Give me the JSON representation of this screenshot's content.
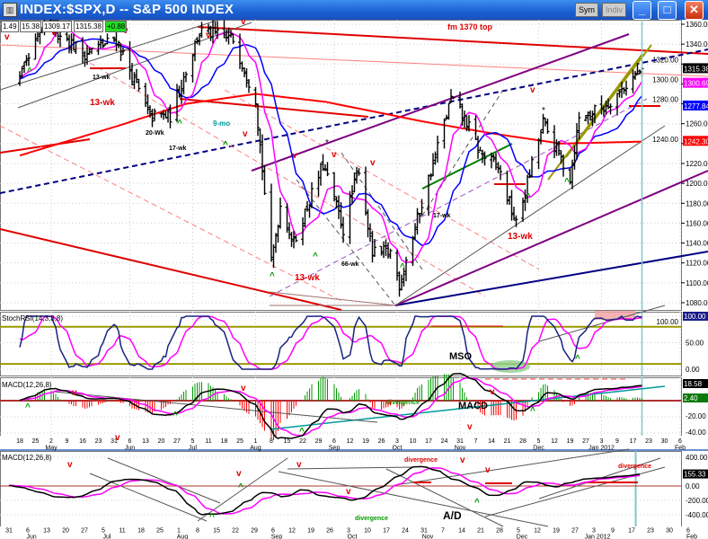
{
  "window": {
    "title": "INDEX:$SPX,D -- S&P 500 INDEX",
    "icon": "chart-icon",
    "buttons": [
      "Sym",
      "Indiv"
    ],
    "controls": [
      "minimize",
      "maximize",
      "close"
    ]
  },
  "quote": {
    "open": "1.49",
    "high": "15.38",
    "low": "1309.17",
    "close": "1315.38",
    "change": "+0.88"
  },
  "colors": {
    "price": "#000000",
    "ma_short": "#ff00ff",
    "ma_mid": "#0000ff",
    "ma_long": "#ff0000",
    "stoch": "#1a237e",
    "signal": "#ff00ff",
    "hist_up": "#009900",
    "hist_down": "#ff0000",
    "level": "#999900"
  },
  "chart_data": [
    {
      "type": "ohlc",
      "panel": "price",
      "title": "INDEX:$SPX,D -- S&P 500 INDEX",
      "ylim": [
        1075,
        1365
      ],
      "yticks": [
        "1360.00",
        "1340.00",
        "1320.00",
        "1300.00",
        "1280.00",
        "1260.00",
        "1240.00",
        "1220.00",
        "1200.00",
        "1180.00",
        "1160.00",
        "1140.00",
        "1120.00",
        "1100.00",
        "1080.00"
      ],
      "close_path": [
        [
          "2011-04-18",
          1305
        ],
        [
          "2011-04-29",
          1360
        ],
        [
          "2011-05-02",
          1361
        ],
        [
          "2011-05-16",
          1330
        ],
        [
          "2011-05-31",
          1345
        ],
        [
          "2011-06-15",
          1267
        ],
        [
          "2011-06-24",
          1268
        ],
        [
          "2011-07-07",
          1353
        ],
        [
          "2011-07-22",
          1345
        ],
        [
          "2011-08-01",
          1286
        ],
        [
          "2011-08-08",
          1119
        ],
        [
          "2011-08-12",
          1178
        ],
        [
          "2011-08-18",
          1140
        ],
        [
          "2011-08-31",
          1219
        ],
        [
          "2011-09-09",
          1154
        ],
        [
          "2011-09-16",
          1216
        ],
        [
          "2011-09-22",
          1129
        ],
        [
          "2011-09-30",
          1131
        ],
        [
          "2011-10-04",
          1099
        ],
        [
          "2011-10-27",
          1285
        ],
        [
          "2011-11-03",
          1261
        ],
        [
          "2011-11-09",
          1230
        ],
        [
          "2011-11-17",
          1216
        ],
        [
          "2011-11-25",
          1158
        ],
        [
          "2011-12-07",
          1261
        ],
        [
          "2011-12-19",
          1206
        ],
        [
          "2011-12-23",
          1265
        ],
        [
          "2012-01-03",
          1277
        ],
        [
          "2012-01-20",
          1315
        ]
      ],
      "ma_long_path": [
        [
          "2011-04-18",
          1228
        ],
        [
          "2011-06-01",
          1258
        ],
        [
          "2011-07-01",
          1280
        ],
        [
          "2011-08-01",
          1290
        ],
        [
          "2011-09-01",
          1282
        ],
        [
          "2011-10-15",
          1262
        ],
        [
          "2011-11-15",
          1250
        ],
        [
          "2011-12-15",
          1240
        ],
        [
          "2012-01-20",
          1242
        ]
      ],
      "value_labels": {
        "close": "1315.38",
        "ma_short": "1300.69",
        "ma_mid": "1277.84",
        "ma_long": "1242.30"
      }
    },
    {
      "type": "line",
      "panel": "stochrsi",
      "label": "StochRSI(14,3,3,8)",
      "ylim": [
        0,
        100
      ],
      "yticks": [
        "100.00",
        "50.00",
        "0.00"
      ],
      "levels": [
        80,
        10
      ],
      "value_label": "100.00"
    },
    {
      "type": "macd",
      "panel": "macd",
      "label": "MACD(12,26,8)",
      "ylim": [
        -42,
        25
      ],
      "yticks": [
        "-20.00",
        "-40.00"
      ],
      "value_labels": {
        "macd": "18.58",
        "histogram": "2.40"
      }
    },
    {
      "type": "line",
      "panel": "ad",
      "label": "MACD(12,26,8)",
      "ylim": [
        -450,
        450
      ],
      "yticks": [
        "400.00",
        "0.00",
        "-200.00",
        "-400.00"
      ],
      "value_label": "155.33"
    }
  ],
  "axis_top": [
    {
      "d": "18"
    },
    {
      "d": "25"
    },
    {
      "d": "2",
      "m": "May"
    },
    {
      "d": "9"
    },
    {
      "d": "16"
    },
    {
      "d": "23"
    },
    {
      "d": "31"
    },
    {
      "d": "6",
      "m": "Jun"
    },
    {
      "d": "13"
    },
    {
      "d": "20"
    },
    {
      "d": "27"
    },
    {
      "d": "5",
      "m": "Jul"
    },
    {
      "d": "11"
    },
    {
      "d": "18"
    },
    {
      "d": "25"
    },
    {
      "d": "1",
      "m": "Aug"
    },
    {
      "d": "8"
    },
    {
      "d": "15"
    },
    {
      "d": "22"
    },
    {
      "d": "29"
    },
    {
      "d": "6",
      "m": "Sep"
    },
    {
      "d": "12"
    },
    {
      "d": "19"
    },
    {
      "d": "26"
    },
    {
      "d": "3",
      "m": "Oct"
    },
    {
      "d": "10"
    },
    {
      "d": "17"
    },
    {
      "d": "24"
    },
    {
      "d": "31",
      "m": "Nov"
    },
    {
      "d": "7"
    },
    {
      "d": "14"
    },
    {
      "d": "21"
    },
    {
      "d": "28"
    },
    {
      "d": "5",
      "m": "Dec"
    },
    {
      "d": "12"
    },
    {
      "d": "19"
    },
    {
      "d": "27"
    },
    {
      "d": "3",
      "m": "Jan 2012"
    },
    {
      "d": "9"
    },
    {
      "d": "17"
    },
    {
      "d": "23"
    },
    {
      "d": "30"
    },
    {
      "d": "6",
      "m": "Feb"
    }
  ],
  "axis_bottom": [
    {
      "d": "31"
    },
    {
      "d": "6",
      "m": "Jun"
    },
    {
      "d": "13"
    },
    {
      "d": "20"
    },
    {
      "d": "27"
    },
    {
      "d": "5",
      "m": "Jul"
    },
    {
      "d": "11"
    },
    {
      "d": "18"
    },
    {
      "d": "25"
    },
    {
      "d": "1",
      "m": "Aug"
    },
    {
      "d": "8"
    },
    {
      "d": "15"
    },
    {
      "d": "22"
    },
    {
      "d": "29"
    },
    {
      "d": "6",
      "m": "Sep"
    },
    {
      "d": "12"
    },
    {
      "d": "19"
    },
    {
      "d": "26"
    },
    {
      "d": "3",
      "m": "Oct"
    },
    {
      "d": "10"
    },
    {
      "d": "17"
    },
    {
      "d": "24"
    },
    {
      "d": "31",
      "m": "Nov"
    },
    {
      "d": "7"
    },
    {
      "d": "14"
    },
    {
      "d": "21"
    },
    {
      "d": "28"
    },
    {
      "d": "5",
      "m": "Dec"
    },
    {
      "d": "12"
    },
    {
      "d": "19"
    },
    {
      "d": "27"
    },
    {
      "d": "3",
      "m": "Jan 2012"
    },
    {
      "d": "9"
    },
    {
      "d": "17"
    },
    {
      "d": "23"
    },
    {
      "d": "30"
    },
    {
      "d": "6",
      "m": "Feb"
    }
  ],
  "annotations": [
    {
      "text": "fm 1370 top",
      "color": "#e00000"
    },
    {
      "text": "13-wk",
      "color": "#000000"
    },
    {
      "text": "13-wk",
      "color": "#e00000"
    },
    {
      "text": "20-Wk",
      "color": "#000000"
    },
    {
      "text": "17-wk",
      "color": "#000000"
    },
    {
      "text": "9-mo",
      "color": "#009999"
    },
    {
      "text": "13-wk",
      "color": "#e00000"
    },
    {
      "text": "66-wk",
      "color": "#000000"
    },
    {
      "text": "17-wk",
      "color": "#000000"
    },
    {
      "text": "13-wk",
      "color": "#e00000"
    },
    {
      "text": "MSO",
      "color": "#000000"
    },
    {
      "text": "MACD",
      "color": "#000000"
    },
    {
      "text": "divergence",
      "color": "#009900"
    },
    {
      "text": "divergence",
      "color": "#009900"
    },
    {
      "text": "A/D",
      "color": "#000000"
    },
    {
      "text": "divergence",
      "color": "#e00000"
    },
    {
      "text": "divergence",
      "color": "#e00000"
    }
  ],
  "markers": {
    "top": "v",
    "bottom": "^",
    "star": "*"
  }
}
